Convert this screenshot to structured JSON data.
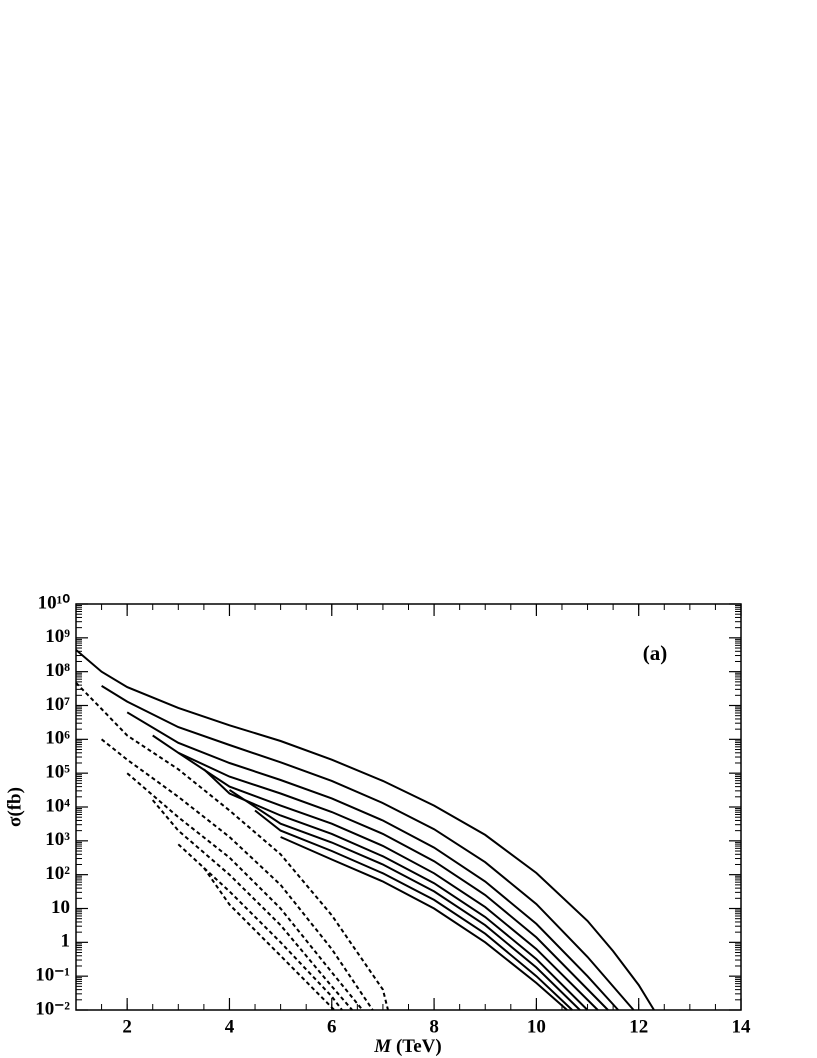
{
  "chart_data": {
    "type": "line",
    "annotation": "(a)",
    "ylabel": "σ(fb)",
    "xlabel_symbol": "M",
    "xlabel_unit": "(TeV)",
    "log_y": true,
    "xlim": [
      1,
      14
    ],
    "xticks": [
      2,
      4,
      6,
      8,
      10,
      12,
      14
    ],
    "ylim": [
      0.01,
      10000000000.0
    ],
    "yticks": [
      {
        "value": 0.01,
        "label": "10⁻²"
      },
      {
        "value": 0.1,
        "label": "10⁻¹"
      },
      1,
      10,
      {
        "value": 100,
        "label": "10²"
      },
      {
        "value": 1000,
        "label": "10³"
      },
      {
        "value": 10000,
        "label": "10⁴"
      },
      {
        "value": 100000,
        "label": "10⁵"
      },
      {
        "value": 1000000,
        "label": "10⁶"
      },
      {
        "value": 10000000,
        "label": "10⁷"
      },
      {
        "value": 100000000,
        "label": "10⁸"
      },
      {
        "value": 1000000000,
        "label": "10⁹"
      },
      {
        "value": 10000000000,
        "label": "10¹⁰"
      }
    ],
    "series": [
      {
        "color": "#000",
        "style": "solid",
        "x": [
          1,
          1.5,
          2,
          3,
          4,
          5,
          6,
          7,
          8,
          9,
          10,
          11,
          11.5,
          12,
          12.3
        ],
        "values": [
          440000000.0,
          100000000.0,
          35000000.0,
          8500000.0,
          2600000.0,
          890000.0,
          250000.0,
          59000.0,
          11000.0,
          1500,
          112,
          4.3,
          0.55,
          0.055,
          0.01
        ]
      },
      {
        "color": "#000",
        "style": "solid",
        "x": [
          1.5,
          2,
          3,
          4,
          5,
          6,
          7,
          8,
          9,
          10,
          11,
          11.9
        ],
        "values": [
          38000000.0,
          13000000.0,
          2300000.0,
          680000.0,
          210000.0,
          59000.0,
          13000.0,
          2200,
          234,
          13.5,
          0.37,
          0.01
        ]
      },
      {
        "color": "#000",
        "style": "solid",
        "x": [
          2,
          3,
          4,
          5,
          6,
          7,
          8,
          9,
          10,
          11,
          11.6
        ],
        "values": [
          6300000.0,
          790000.0,
          200000.0,
          63000.0,
          18000.0,
          4000,
          630,
          63,
          3.5,
          0.1,
          0.01
        ]
      },
      {
        "color": "#000",
        "style": "solid",
        "x": [
          2.5,
          3,
          4,
          5,
          6,
          7,
          8,
          9,
          10,
          11.4
        ],
        "values": [
          1300000.0,
          400000.0,
          79000.0,
          25000.0,
          7100,
          1600,
          250,
          25,
          1.4,
          0.01
        ]
      },
      {
        "color": "#000",
        "style": "solid",
        "x": [
          3,
          4,
          5,
          6,
          7,
          8,
          9,
          10,
          11.2
        ],
        "values": [
          400000.0,
          40000.0,
          11000.0,
          3200,
          710,
          110,
          11,
          0.63,
          0.01
        ]
      },
      {
        "color": "#000",
        "style": "solid",
        "x": [
          3.5,
          4,
          5,
          6,
          7,
          8,
          9,
          10,
          11
        ],
        "values": [
          130000.0,
          25000.0,
          5600,
          1600,
          350,
          56,
          5.6,
          0.32,
          0.01
        ]
      },
      {
        "color": "#000",
        "style": "solid",
        "x": [
          4,
          5,
          6,
          7,
          8,
          9,
          10,
          10.85
        ],
        "values": [
          32000.0,
          3200,
          890,
          200,
          32,
          3.2,
          0.18,
          0.01
        ]
      },
      {
        "color": "#000",
        "style": "solid",
        "x": [
          4.5,
          5,
          6,
          7,
          8,
          9,
          10,
          10.7
        ],
        "values": [
          7900,
          2000,
          500,
          110,
          18,
          1.8,
          0.1,
          0.01
        ]
      },
      {
        "color": "#000",
        "style": "solid",
        "x": [
          5,
          6,
          7,
          8,
          9,
          10,
          10.6
        ],
        "values": [
          1300,
          280,
          63,
          10,
          1,
          0.063,
          0.01
        ]
      },
      {
        "color": "#000",
        "style": "dashed",
        "x": [
          1,
          1.5,
          2,
          3,
          4,
          5,
          6,
          7,
          7.1
        ],
        "values": [
          47000000.0,
          7900000.0,
          1300000.0,
          130000.0,
          7900,
          400,
          6.3,
          0.04,
          0.01
        ]
      },
      {
        "color": "#000",
        "style": "dashed",
        "x": [
          1.5,
          2,
          3,
          4,
          5,
          6,
          6.8
        ],
        "values": [
          1000000.0,
          250000.0,
          20000.0,
          1300,
          50,
          0.63,
          0.01
        ]
      },
      {
        "color": "#000",
        "style": "dashed",
        "x": [
          2,
          3,
          4,
          5,
          6,
          6.6
        ],
        "values": [
          100000.0,
          5000,
          320,
          10,
          0.13,
          0.01
        ]
      },
      {
        "color": "#000",
        "style": "dashed",
        "x": [
          2.5,
          3,
          4,
          5,
          6,
          6.4
        ],
        "values": [
          16000.0,
          2000,
          100,
          3.2,
          0.05,
          0.01
        ]
      },
      {
        "color": "#000",
        "style": "dashed",
        "x": [
          3,
          4,
          5,
          6,
          6.2
        ],
        "values": [
          790,
          32,
          1,
          0.025,
          0.01
        ]
      },
      {
        "color": "#000",
        "style": "dashed",
        "x": [
          3.5,
          4,
          5,
          6.05
        ],
        "values": [
          160,
          13,
          0.4,
          0.01
        ]
      }
    ]
  }
}
